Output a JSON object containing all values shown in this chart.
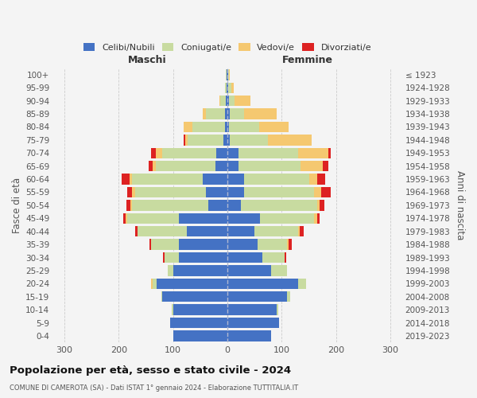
{
  "age_groups": [
    "0-4",
    "5-9",
    "10-14",
    "15-19",
    "20-24",
    "25-29",
    "30-34",
    "35-39",
    "40-44",
    "45-49",
    "50-54",
    "55-59",
    "60-64",
    "65-69",
    "70-74",
    "75-79",
    "80-84",
    "85-89",
    "90-94",
    "95-99",
    "100+"
  ],
  "birth_years": [
    "2019-2023",
    "2014-2018",
    "2009-2013",
    "2004-2008",
    "1999-2003",
    "1994-1998",
    "1989-1993",
    "1984-1988",
    "1979-1983",
    "1974-1978",
    "1969-1973",
    "1964-1968",
    "1959-1963",
    "1954-1958",
    "1949-1953",
    "1944-1948",
    "1939-1943",
    "1934-1938",
    "1929-1933",
    "1924-1928",
    "≤ 1923"
  ],
  "m_celibi": [
    100,
    105,
    100,
    120,
    130,
    100,
    90,
    90,
    75,
    90,
    35,
    40,
    45,
    22,
    20,
    8,
    5,
    5,
    3,
    2,
    2
  ],
  "m_coniugati": [
    0,
    0,
    3,
    2,
    8,
    10,
    25,
    50,
    90,
    95,
    140,
    130,
    130,
    110,
    100,
    65,
    60,
    35,
    10,
    3,
    1
  ],
  "m_vedovi": [
    0,
    0,
    0,
    0,
    3,
    0,
    0,
    0,
    0,
    3,
    3,
    5,
    5,
    5,
    12,
    5,
    15,
    5,
    2,
    0,
    0
  ],
  "m_divorziati": [
    0,
    0,
    0,
    0,
    0,
    0,
    3,
    3,
    5,
    3,
    8,
    10,
    15,
    8,
    8,
    3,
    0,
    0,
    0,
    0,
    0
  ],
  "f_nubili": [
    80,
    95,
    90,
    110,
    130,
    80,
    65,
    55,
    50,
    60,
    25,
    30,
    30,
    20,
    20,
    5,
    3,
    5,
    3,
    2,
    2
  ],
  "f_coniugate": [
    0,
    0,
    3,
    5,
    15,
    30,
    40,
    55,
    80,
    100,
    140,
    130,
    120,
    115,
    110,
    70,
    55,
    25,
    10,
    5,
    1
  ],
  "f_vedove": [
    0,
    0,
    0,
    0,
    0,
    0,
    0,
    3,
    3,
    5,
    5,
    12,
    15,
    40,
    55,
    80,
    55,
    60,
    30,
    5,
    1
  ],
  "f_divorziate": [
    0,
    0,
    0,
    0,
    0,
    0,
    3,
    5,
    8,
    5,
    8,
    18,
    15,
    10,
    5,
    0,
    0,
    0,
    0,
    0,
    0
  ],
  "color_celibi": "#4472C4",
  "color_coniugati": "#c8dba0",
  "color_vedovi": "#f5c870",
  "color_divorziati": "#dd2222",
  "xlim": 320,
  "title": "Popolazione per età, sesso e stato civile - 2024",
  "subtitle": "COMUNE DI CAMEROTA (SA) - Dati ISTAT 1° gennaio 2024 - Elaborazione TUTTITALIA.IT",
  "ylabel_left": "Fasce di età",
  "ylabel_right": "Anni di nascita",
  "label_maschi": "Maschi",
  "label_femmine": "Femmine",
  "legend_labels": [
    "Celibi/Nubili",
    "Coniugati/e",
    "Vedovi/e",
    "Divorziati/e"
  ],
  "bg_color": "#f4f4f4",
  "grid_color": "#cccccc"
}
